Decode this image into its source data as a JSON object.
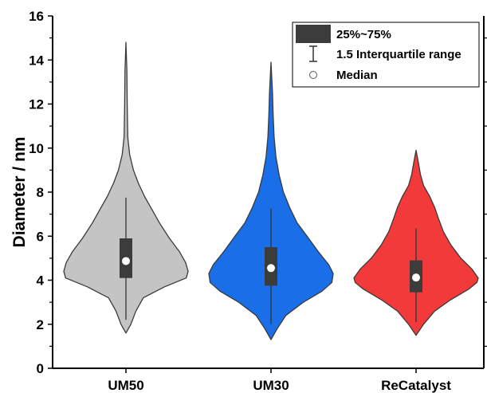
{
  "chart_data": {
    "type": "violin",
    "title": "",
    "xlabel": "",
    "ylabel": "Diameter / nm",
    "ylim": [
      0,
      16
    ],
    "yticks": [
      "0",
      "2",
      "4",
      "6",
      "8",
      "10",
      "12",
      "14",
      "16"
    ],
    "grid": false,
    "legend_position": "top-right",
    "legend": {
      "box_label": "25%~75%",
      "whisker_label": "1.5 Interquartile range",
      "median_label": "Median"
    },
    "categories": [
      "UM50",
      "UM30",
      "ReCatalyst"
    ],
    "series": [
      {
        "category": "UM50",
        "color": "#c4c4c4",
        "min": 1.6,
        "max": 14.8,
        "q1": 4.1,
        "q3": 5.9,
        "median": 4.87,
        "whisker_low": 2.2,
        "whisker_high": 7.75,
        "density_profile": [
          [
            1.6,
            0.0
          ],
          [
            2.0,
            0.08
          ],
          [
            2.6,
            0.16
          ],
          [
            3.2,
            0.28
          ],
          [
            3.7,
            0.62
          ],
          [
            4.1,
            0.97
          ],
          [
            4.4,
            1.0
          ],
          [
            4.8,
            0.96
          ],
          [
            5.3,
            0.86
          ],
          [
            5.9,
            0.7
          ],
          [
            6.6,
            0.54
          ],
          [
            7.2,
            0.42
          ],
          [
            7.8,
            0.3
          ],
          [
            8.4,
            0.2
          ],
          [
            9.0,
            0.12
          ],
          [
            9.7,
            0.06
          ],
          [
            10.5,
            0.03
          ],
          [
            12.0,
            0.02
          ],
          [
            13.5,
            0.015
          ],
          [
            14.8,
            0.0
          ]
        ]
      },
      {
        "category": "UM30",
        "color": "#1a6ee8",
        "min": 1.3,
        "max": 13.9,
        "q1": 3.75,
        "q3": 5.5,
        "median": 4.55,
        "whisker_low": 2.0,
        "whisker_high": 7.25,
        "density_profile": [
          [
            1.3,
            0.0
          ],
          [
            1.8,
            0.1
          ],
          [
            2.4,
            0.24
          ],
          [
            3.0,
            0.52
          ],
          [
            3.5,
            0.82
          ],
          [
            3.9,
            0.98
          ],
          [
            4.3,
            1.0
          ],
          [
            4.7,
            0.93
          ],
          [
            5.3,
            0.76
          ],
          [
            6.0,
            0.58
          ],
          [
            6.6,
            0.42
          ],
          [
            7.3,
            0.3
          ],
          [
            8.0,
            0.2
          ],
          [
            8.8,
            0.13
          ],
          [
            9.6,
            0.08
          ],
          [
            10.5,
            0.05
          ],
          [
            11.5,
            0.035
          ],
          [
            12.5,
            0.025
          ],
          [
            13.9,
            0.0
          ]
        ]
      },
      {
        "category": "ReCatalyst",
        "color": "#f23a3a",
        "min": 1.5,
        "max": 9.9,
        "q1": 3.45,
        "q3": 4.9,
        "median": 4.12,
        "whisker_low": 2.1,
        "whisker_high": 6.35,
        "density_profile": [
          [
            1.5,
            0.0
          ],
          [
            2.0,
            0.12
          ],
          [
            2.6,
            0.3
          ],
          [
            3.1,
            0.55
          ],
          [
            3.6,
            0.85
          ],
          [
            3.9,
            0.98
          ],
          [
            4.1,
            1.0
          ],
          [
            4.5,
            0.9
          ],
          [
            5.0,
            0.72
          ],
          [
            5.6,
            0.56
          ],
          [
            6.2,
            0.44
          ],
          [
            6.8,
            0.36
          ],
          [
            7.3,
            0.3
          ],
          [
            7.8,
            0.22
          ],
          [
            8.3,
            0.12
          ],
          [
            8.8,
            0.07
          ],
          [
            9.3,
            0.04
          ],
          [
            9.9,
            0.0
          ]
        ]
      }
    ]
  }
}
